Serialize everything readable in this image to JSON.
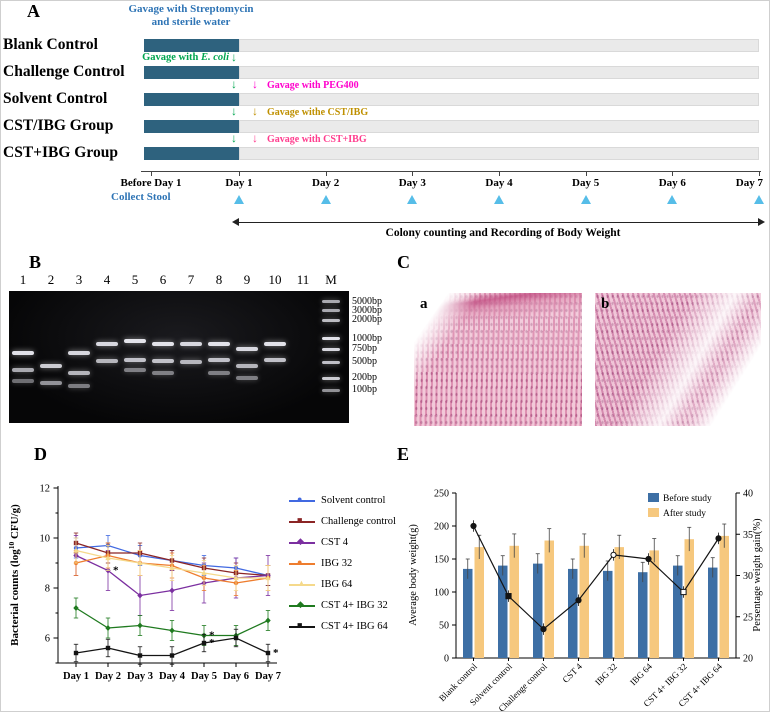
{
  "figure": {
    "panel_labels": {
      "A": "A",
      "B": "B",
      "C": "C",
      "D": "D",
      "E": "E"
    }
  },
  "panelA": {
    "header_line1": "Gavage with Streptomycin",
    "header_line2": "and sterile water",
    "groups": [
      "Blank Control",
      "Challenge Control",
      "Solvent Control",
      "CST/IBG Group",
      "CST+IBG Group"
    ],
    "ecoli_prefix": "Gavage with ",
    "ecoli_species": "E. coli",
    "ecoli_color": "#00A650",
    "treatments": [
      {
        "label": "Gavage with PEG400",
        "color": "#FF00CC"
      },
      {
        "label": "Gavage withe CST/IBG",
        "color": "#BF9000"
      },
      {
        "label": "Gavage with CST+IBG",
        "color": "#FF3D8E"
      }
    ],
    "timeline": [
      "Before Day 1",
      "Day 1",
      "Day 2",
      "Day 3",
      "Day 4",
      "Day 5",
      "Day 6",
      "Day 7"
    ],
    "collect_stool_label": "Collect Stool",
    "span_label": "Colony counting and Recording of Body Weight",
    "bar_color": "#2E627E",
    "triangle_color": "#56BDE8"
  },
  "panelB": {
    "lanes": [
      {
        "label": "1",
        "bands": [
          [
            0.47,
            0.95
          ],
          [
            0.6,
            0.7
          ],
          [
            0.68,
            0.45
          ]
        ]
      },
      {
        "label": "2",
        "bands": [
          [
            0.57,
            0.85
          ],
          [
            0.7,
            0.6
          ]
        ]
      },
      {
        "label": "3",
        "bands": [
          [
            0.47,
            0.9
          ],
          [
            0.62,
            0.75
          ],
          [
            0.72,
            0.5
          ]
        ]
      },
      {
        "label": "4",
        "bands": [
          [
            0.4,
            0.9
          ],
          [
            0.53,
            0.75
          ]
        ]
      },
      {
        "label": "5",
        "bands": [
          [
            0.38,
            0.95
          ],
          [
            0.52,
            0.8
          ],
          [
            0.6,
            0.5
          ]
        ]
      },
      {
        "label": "6",
        "bands": [
          [
            0.4,
            0.95
          ],
          [
            0.53,
            0.8
          ],
          [
            0.62,
            0.5
          ]
        ]
      },
      {
        "label": "7",
        "bands": [
          [
            0.4,
            0.9
          ],
          [
            0.54,
            0.75
          ]
        ]
      },
      {
        "label": "8",
        "bands": [
          [
            0.4,
            0.95
          ],
          [
            0.52,
            0.8
          ],
          [
            0.62,
            0.5
          ]
        ]
      },
      {
        "label": "9",
        "bands": [
          [
            0.44,
            0.9
          ],
          [
            0.57,
            0.75
          ],
          [
            0.66,
            0.5
          ]
        ]
      },
      {
        "label": "10",
        "bands": [
          [
            0.4,
            0.95
          ],
          [
            0.52,
            0.8
          ]
        ]
      },
      {
        "label": "11",
        "bands": []
      },
      {
        "label": "M",
        "bands": [
          [
            0.08,
            0.7
          ],
          [
            0.15,
            0.7
          ],
          [
            0.22,
            0.78
          ],
          [
            0.36,
            0.95
          ],
          [
            0.44,
            0.9
          ],
          [
            0.54,
            0.8
          ],
          [
            0.66,
            0.85
          ],
          [
            0.75,
            0.6
          ]
        ]
      }
    ],
    "ladder": [
      {
        "text": "5000bp",
        "y": 0.08
      },
      {
        "text": "3000bp",
        "y": 0.15
      },
      {
        "text": "2000bp",
        "y": 0.22
      },
      {
        "text": "1000bp",
        "y": 0.36
      },
      {
        "text": "750bp",
        "y": 0.44
      },
      {
        "text": "500bp",
        "y": 0.54
      },
      {
        "text": "200bp",
        "y": 0.66
      },
      {
        "text": "100bp",
        "y": 0.75
      }
    ]
  },
  "panelC": {
    "images": [
      {
        "label": "a"
      },
      {
        "label": "b"
      }
    ]
  },
  "chart_data": [
    {
      "type": "line",
      "panel": "D",
      "ylabel": "Bacterial counts (log10 CFU/g)",
      "x": [
        "Day 1",
        "Day 2",
        "Day 3",
        "Day 4",
        "Day 5",
        "Day 6",
        "Day 7"
      ],
      "ylim": [
        5,
        12
      ],
      "yticks": [
        6,
        8,
        10,
        12
      ],
      "series": [
        {
          "name": "Solvent control",
          "color": "#4169E1",
          "marker": "circle",
          "values": [
            9.6,
            9.7,
            9.3,
            9.1,
            8.9,
            8.8,
            8.5
          ],
          "error": 0.4
        },
        {
          "name": "Challenge control",
          "color": "#8B2525",
          "marker": "square",
          "values": [
            9.8,
            9.4,
            9.4,
            9.1,
            8.8,
            8.6,
            8.5
          ],
          "error": 0.4
        },
        {
          "name": "CST 4",
          "color": "#7B2FA0",
          "marker": "diamond",
          "values": [
            9.3,
            8.7,
            7.7,
            7.9,
            8.2,
            8.4,
            8.5
          ],
          "error": 0.8
        },
        {
          "name": "IBG 32",
          "color": "#EE7D2E",
          "marker": "circle",
          "values": [
            9.0,
            9.3,
            9.0,
            8.9,
            8.4,
            8.2,
            8.4
          ],
          "error": 0.5
        },
        {
          "name": "IBG 64",
          "color": "#F5D98B",
          "marker": "triangle",
          "values": [
            9.5,
            9.2,
            9.0,
            8.8,
            8.6,
            8.4,
            8.4
          ],
          "error": 0.5
        },
        {
          "name": "CST 4+ IBG 32",
          "color": "#1F7A1F",
          "marker": "diamond",
          "values": [
            7.2,
            6.4,
            6.5,
            6.3,
            6.1,
            6.1,
            6.7
          ],
          "error": 0.4
        },
        {
          "name": "CST 4+ IBG 64",
          "color": "#141414",
          "marker": "square",
          "values": [
            5.4,
            5.6,
            5.3,
            5.3,
            5.8,
            6.0,
            5.4
          ],
          "error": 0.35
        }
      ],
      "annotations": [
        {
          "series": "CST 4",
          "x": "Day 2",
          "text": "*"
        },
        {
          "series": "CST 4+ IBG 32",
          "x": "Day 5",
          "text": "*"
        },
        {
          "series": "CST 4+ IBG 64",
          "x": "Day 5",
          "text": "*"
        },
        {
          "series": "CST 4+ IBG 64",
          "x": "Day 7",
          "text": "*"
        }
      ],
      "legend_position": "right"
    },
    {
      "type": "bar",
      "panel": "E",
      "categories": [
        "Blank control",
        "Solvent control",
        "Challenge control",
        "CST 4",
        "IBG 32",
        "IBG 64",
        "CST 4+ IBG 32",
        "CST 4+ IBG 64"
      ],
      "bar_series": [
        {
          "name": "Before study",
          "color": "#3D6FA5",
          "values": [
            135,
            140,
            143,
            135,
            132,
            130,
            140,
            137
          ],
          "error": 15
        },
        {
          "name": "After study",
          "color": "#F6C87E",
          "values": [
            168,
            170,
            178,
            170,
            168,
            163,
            180,
            185
          ],
          "error": 18
        }
      ],
      "line_series": {
        "name": "Percentage weight gain",
        "color": "#141414",
        "values": [
          36,
          27.5,
          23.5,
          27,
          32.5,
          32,
          28,
          34.5
        ],
        "error": 0.7,
        "markers": [
          "circle-filled",
          "square-filled",
          "circle-filled",
          "circle-filled",
          "circle-open",
          "circle-filled",
          "square-open",
          "circle-filled"
        ]
      },
      "ylabel_left": "Average body weight(g)",
      "ylabel_right": "Persentage weight gain(%)",
      "ylim_left": [
        0,
        250
      ],
      "yticks_left": [
        0,
        50,
        100,
        150,
        200,
        250
      ],
      "ylim_right": [
        20,
        40
      ],
      "yticks_right": [
        20,
        25,
        30,
        35,
        40
      ],
      "legend_position": "top-right"
    }
  ]
}
